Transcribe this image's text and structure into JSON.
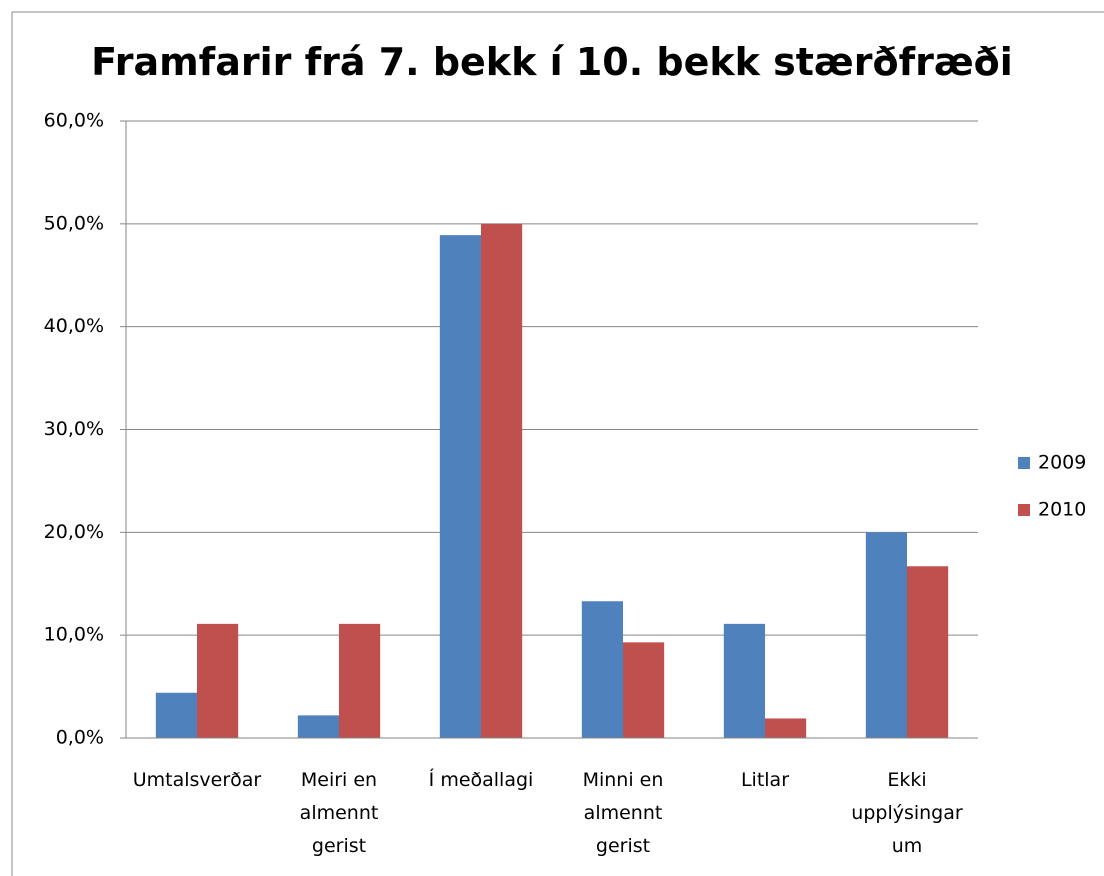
{
  "chart_data": {
    "type": "bar",
    "title": "Framfarir frá 7. bekk í 10. bekk stærðfræði",
    "categories": [
      "Umtalsverðar",
      "Meiri en almennt gerist",
      "Í meðallagi",
      "Minni en almennt gerist",
      "Litlar",
      "Ekki upplýsingar um"
    ],
    "series": [
      {
        "name": "2009",
        "color": "#4f81bd",
        "values": [
          4.4,
          2.2,
          48.9,
          13.3,
          11.1,
          20.0
        ]
      },
      {
        "name": "2010",
        "color": "#c0504d",
        "values": [
          11.1,
          11.1,
          50.0,
          9.3,
          1.9,
          16.7
        ]
      }
    ],
    "ylim": [
      0,
      60
    ],
    "yticks": [
      {
        "value": 0,
        "label": "0,0%"
      },
      {
        "value": 10,
        "label": "10,0%"
      },
      {
        "value": 20,
        "label": "20,0%"
      },
      {
        "value": 30,
        "label": "30,0%"
      },
      {
        "value": 40,
        "label": "40,0%"
      },
      {
        "value": 50,
        "label": "50,0%"
      },
      {
        "value": 60,
        "label": "60,0%"
      }
    ],
    "grid": true,
    "legend": "right"
  }
}
